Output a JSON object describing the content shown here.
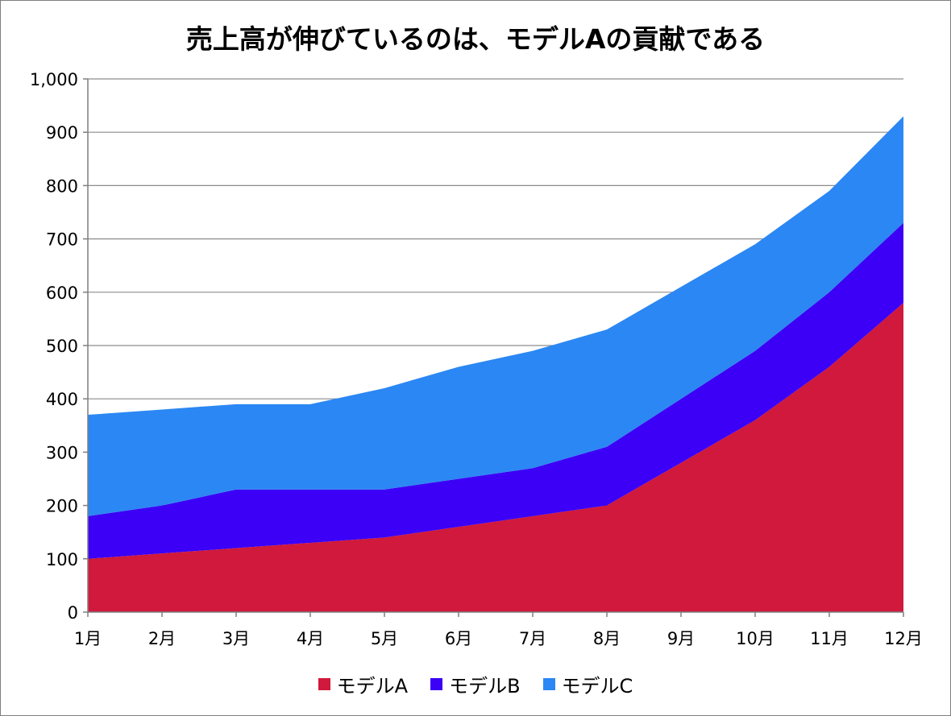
{
  "chart_data": {
    "type": "area",
    "stacked": true,
    "title": "売上高が伸びているのは、モデルAの貢献である",
    "categories": [
      "1月",
      "2月",
      "3月",
      "4月",
      "5月",
      "6月",
      "7月",
      "8月",
      "9月",
      "10月",
      "11月",
      "12月"
    ],
    "series": [
      {
        "name": "モデルA",
        "color": "#d0193c",
        "values": [
          100,
          110,
          120,
          130,
          140,
          160,
          180,
          200,
          280,
          360,
          460,
          580
        ]
      },
      {
        "name": "モデルB",
        "color": "#3b00f5",
        "values": [
          80,
          90,
          110,
          100,
          90,
          90,
          90,
          110,
          120,
          130,
          140,
          150
        ]
      },
      {
        "name": "モデルC",
        "color": "#2b87f3",
        "values": [
          190,
          180,
          160,
          160,
          190,
          210,
          220,
          220,
          210,
          200,
          190,
          200
        ]
      }
    ],
    "ylim": [
      0,
      1000
    ],
    "yticks": [
      0,
      100,
      200,
      300,
      400,
      500,
      600,
      700,
      800,
      900,
      1000
    ],
    "ytick_labels": [
      "0",
      "100",
      "200",
      "300",
      "400",
      "500",
      "600",
      "700",
      "800",
      "900",
      "1,000"
    ],
    "grid": true,
    "legend_position": "bottom"
  }
}
